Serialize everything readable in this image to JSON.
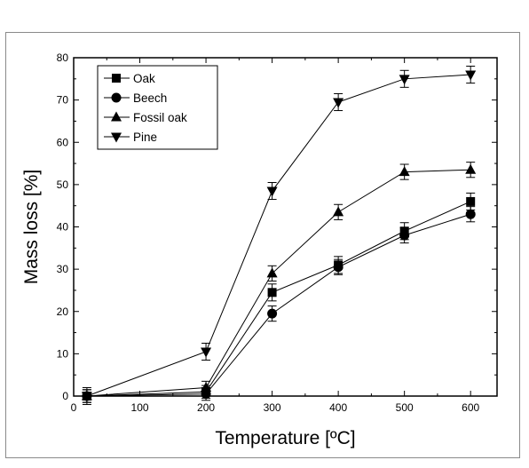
{
  "chart_data": {
    "type": "line",
    "title": "",
    "xlabel": "Temperature [ºC]",
    "ylabel": "Mass loss [%]",
    "xlim": [
      0,
      640
    ],
    "ylim": [
      0,
      80
    ],
    "xticks": [
      0,
      100,
      200,
      300,
      400,
      500,
      600
    ],
    "yticks": [
      0,
      10,
      20,
      30,
      40,
      50,
      60,
      70,
      80
    ],
    "x": [
      20,
      200,
      300,
      400,
      500,
      600
    ],
    "legend_position": "top-left",
    "grid": false,
    "series": [
      {
        "name": "Oak",
        "marker": "square",
        "values": [
          0,
          1,
          24.5,
          31,
          39,
          46
        ],
        "errors": [
          1.5,
          1.5,
          2,
          2,
          2,
          2
        ]
      },
      {
        "name": "Beech",
        "marker": "circle",
        "values": [
          0,
          0.5,
          19.5,
          30.5,
          38,
          43
        ],
        "errors": [
          1.5,
          1.5,
          1.8,
          1.8,
          1.8,
          1.8
        ]
      },
      {
        "name": "Fossil oak",
        "marker": "triangle-up",
        "values": [
          0,
          2,
          29,
          43.5,
          53,
          53.5
        ],
        "errors": [
          1.5,
          1.5,
          1.8,
          1.8,
          1.8,
          1.8
        ]
      },
      {
        "name": "Pine",
        "marker": "triangle-down",
        "values": [
          0,
          10.5,
          48.5,
          69.5,
          75,
          76
        ],
        "errors": [
          2,
          2,
          2,
          2,
          2,
          2
        ]
      }
    ]
  }
}
